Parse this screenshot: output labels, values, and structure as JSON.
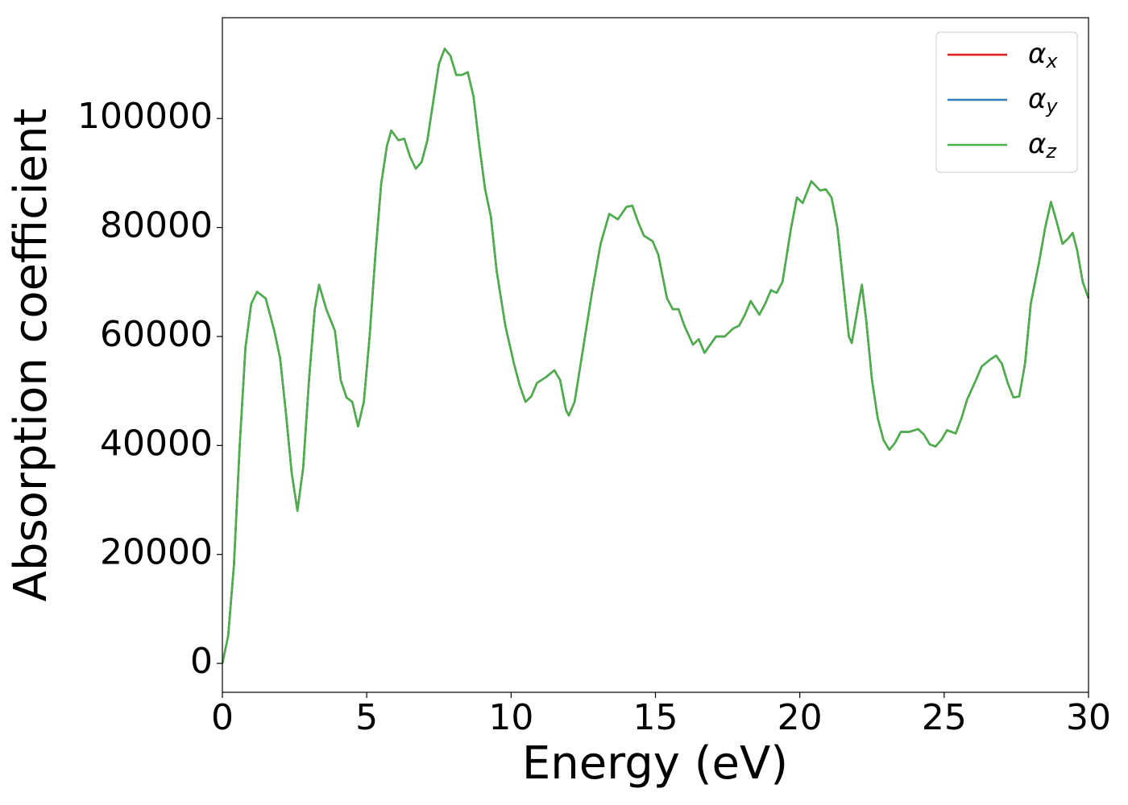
{
  "chart_data": {
    "type": "line",
    "xlabel": "Energy (eV)",
    "ylabel": "Absorption coefficient",
    "x": [
      0,
      0.2,
      0.4,
      0.6,
      0.8,
      1.0,
      1.2,
      1.5,
      1.8,
      2.0,
      2.2,
      2.4,
      2.6,
      2.8,
      3.0,
      3.2,
      3.35,
      3.6,
      3.9,
      4.1,
      4.3,
      4.5,
      4.7,
      4.9,
      5.1,
      5.3,
      5.5,
      5.7,
      5.85,
      6.1,
      6.3,
      6.5,
      6.7,
      6.9,
      7.1,
      7.3,
      7.5,
      7.7,
      7.9,
      8.1,
      8.3,
      8.5,
      8.7,
      8.9,
      9.1,
      9.3,
      9.5,
      9.8,
      10.1,
      10.3,
      10.5,
      10.7,
      10.9,
      11.2,
      11.5,
      11.7,
      11.9,
      12.0,
      12.2,
      12.5,
      12.8,
      13.1,
      13.4,
      13.7,
      14.0,
      14.2,
      14.4,
      14.6,
      14.9,
      15.1,
      15.4,
      15.6,
      15.8,
      16.0,
      16.3,
      16.5,
      16.7,
      16.9,
      17.1,
      17.4,
      17.7,
      17.9,
      18.1,
      18.3,
      18.6,
      18.8,
      19.0,
      19.2,
      19.4,
      19.7,
      19.9,
      20.1,
      20.4,
      20.7,
      20.9,
      21.1,
      21.3,
      21.5,
      21.7,
      21.8,
      22.0,
      22.15,
      22.3,
      22.5,
      22.7,
      22.9,
      23.1,
      23.3,
      23.5,
      23.8,
      24.1,
      24.3,
      24.5,
      24.7,
      24.9,
      25.1,
      25.4,
      25.6,
      25.8,
      26.1,
      26.3,
      26.6,
      26.8,
      27.0,
      27.2,
      27.4,
      27.6,
      27.8,
      28.0,
      28.3,
      28.5,
      28.7,
      28.9,
      29.1,
      29.3,
      29.45,
      29.6,
      29.8,
      30.0
    ],
    "series": [
      {
        "name": "α_x",
        "color": "#e41a1c",
        "values": [
          0,
          5000,
          18000,
          40000,
          58000,
          66000,
          68200,
          67000,
          61000,
          56000,
          46000,
          35000,
          28000,
          36000,
          52000,
          65000,
          69500,
          65000,
          61000,
          52000,
          48800,
          48000,
          43500,
          48000,
          60000,
          75000,
          88000,
          95000,
          97800,
          96000,
          96300,
          93000,
          90800,
          92000,
          96000,
          103000,
          110000,
          112800,
          111500,
          108000,
          108000,
          108500,
          104000,
          95000,
          87000,
          82000,
          72000,
          62000,
          55000,
          51000,
          48000,
          49000,
          51500,
          52500,
          53800,
          52000,
          46500,
          45500,
          48000,
          58000,
          68000,
          77000,
          82500,
          81500,
          83800,
          84000,
          81000,
          78500,
          77500,
          75000,
          67000,
          65000,
          65000,
          62000,
          58500,
          59500,
          57000,
          58500,
          60000,
          60000,
          61500,
          62000,
          64000,
          66500,
          64000,
          66000,
          68500,
          68000,
          70000,
          80000,
          85500,
          84500,
          88500,
          86800,
          87000,
          85500,
          80000,
          70000,
          60000,
          58800,
          65000,
          69500,
          63000,
          52000,
          45000,
          41000,
          39200,
          40500,
          42500,
          42500,
          43000,
          42000,
          40200,
          39800,
          41000,
          42800,
          42200,
          45000,
          48500,
          52000,
          54500,
          55800,
          56500,
          55000,
          51500,
          48800,
          49000,
          55000,
          66000,
          74000,
          80000,
          84700,
          81000,
          77000,
          78000,
          79000,
          76000,
          70000,
          67000
        ]
      },
      {
        "name": "α_y",
        "color": "#377eb8",
        "values": [
          0,
          5000,
          18000,
          40000,
          58000,
          66000,
          68200,
          67000,
          61000,
          56000,
          46000,
          35000,
          28000,
          36000,
          52000,
          65000,
          69500,
          65000,
          61000,
          52000,
          48800,
          48000,
          43500,
          48000,
          60000,
          75000,
          88000,
          95000,
          97800,
          96000,
          96300,
          93000,
          90800,
          92000,
          96000,
          103000,
          110000,
          112800,
          111500,
          108000,
          108000,
          108500,
          104000,
          95000,
          87000,
          82000,
          72000,
          62000,
          55000,
          51000,
          48000,
          49000,
          51500,
          52500,
          53800,
          52000,
          46500,
          45500,
          48000,
          58000,
          68000,
          77000,
          82500,
          81500,
          83800,
          84000,
          81000,
          78500,
          77500,
          75000,
          67000,
          65000,
          65000,
          62000,
          58500,
          59500,
          57000,
          58500,
          60000,
          60000,
          61500,
          62000,
          64000,
          66500,
          64000,
          66000,
          68500,
          68000,
          70000,
          80000,
          85500,
          84500,
          88500,
          86800,
          87000,
          85500,
          80000,
          70000,
          60000,
          58800,
          65000,
          69500,
          63000,
          52000,
          45000,
          41000,
          39200,
          40500,
          42500,
          42500,
          43000,
          42000,
          40200,
          39800,
          41000,
          42800,
          42200,
          45000,
          48500,
          52000,
          54500,
          55800,
          56500,
          55000,
          51500,
          48800,
          49000,
          55000,
          66000,
          74000,
          80000,
          84700,
          81000,
          77000,
          78000,
          79000,
          76000,
          70000,
          67000
        ]
      },
      {
        "name": "α_z",
        "color": "#4daf4a",
        "values": [
          0,
          5000,
          18000,
          40000,
          58000,
          66000,
          68200,
          67000,
          61000,
          56000,
          46000,
          35000,
          28000,
          36000,
          52000,
          65000,
          69500,
          65000,
          61000,
          52000,
          48800,
          48000,
          43500,
          48000,
          60000,
          75000,
          88000,
          95000,
          97800,
          96000,
          96300,
          93000,
          90800,
          92000,
          96000,
          103000,
          110000,
          112800,
          111500,
          108000,
          108000,
          108500,
          104000,
          95000,
          87000,
          82000,
          72000,
          62000,
          55000,
          51000,
          48000,
          49000,
          51500,
          52500,
          53800,
          52000,
          46500,
          45500,
          48000,
          58000,
          68000,
          77000,
          82500,
          81500,
          83800,
          84000,
          81000,
          78500,
          77500,
          75000,
          67000,
          65000,
          65000,
          62000,
          58500,
          59500,
          57000,
          58500,
          60000,
          60000,
          61500,
          62000,
          64000,
          66500,
          64000,
          66000,
          68500,
          68000,
          70000,
          80000,
          85500,
          84500,
          88500,
          86800,
          87000,
          85500,
          80000,
          70000,
          60000,
          58800,
          65000,
          69500,
          63000,
          52000,
          45000,
          41000,
          39200,
          40500,
          42500,
          42500,
          43000,
          42000,
          40200,
          39800,
          41000,
          42800,
          42200,
          45000,
          48500,
          52000,
          54500,
          55800,
          56500,
          55000,
          51500,
          48800,
          49000,
          55000,
          66000,
          74000,
          80000,
          84700,
          81000,
          77000,
          78000,
          79000,
          76000,
          70000,
          67000
        ]
      }
    ],
    "xlim": [
      0,
      30
    ],
    "xticks": [
      0,
      5,
      10,
      15,
      20,
      25,
      30
    ],
    "ylim": [
      -5300,
      118500
    ],
    "yticks": [
      0,
      20000,
      40000,
      60000,
      80000,
      100000
    ],
    "legend": "upper right",
    "grid": false
  }
}
